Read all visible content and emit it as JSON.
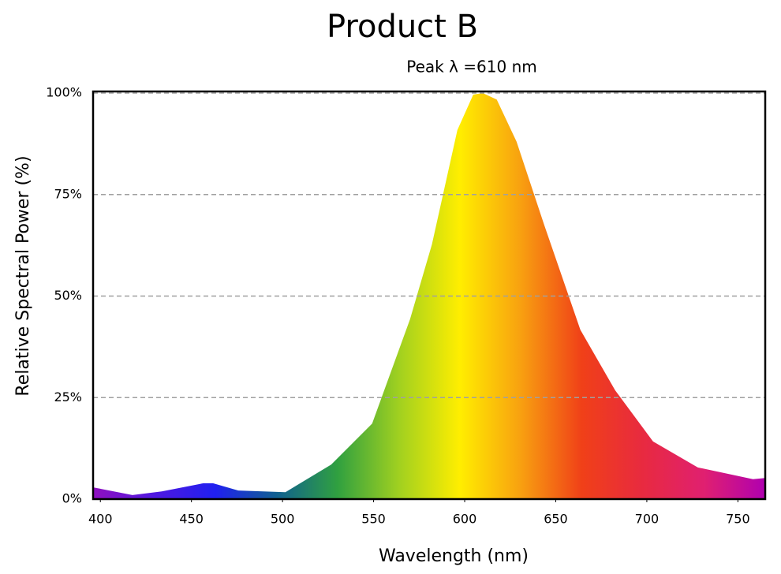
{
  "chart_data": {
    "type": "area",
    "title": "Product B",
    "subtitle": "Peak λ =610 nm",
    "x_label": "Wavelength (nm)",
    "y_label": "Relative Spectral Power (%)",
    "x": [
      396,
      417.6,
      433.7,
      456.6,
      461.8,
      475.7,
      501.6,
      526.7,
      549.2,
      570,
      582,
      596,
      604.7,
      609.9,
      617.6,
      628.5,
      643.6,
      663.5,
      682.6,
      703.4,
      728,
      758.3,
      765
    ],
    "values": [
      2.9,
      1.0,
      1.9,
      3.9,
      3.9,
      2.1,
      1.7,
      8.5,
      18.6,
      44.3,
      62.7,
      90.9,
      99.6,
      100,
      98.4,
      88,
      67.6,
      41.7,
      26.8,
      14.2,
      7.8,
      4.9,
      5.2
    ],
    "colors": [
      "#9010c0",
      "#5018e0",
      "#2020f0",
      "#106090",
      "#30a040",
      "#a0d020",
      "#ffee00",
      "#f8a010",
      "#f04018",
      "#e82a40",
      "#e02070",
      "#b000b0"
    ],
    "xlim": [
      396,
      765
    ],
    "xticks": [
      400,
      450,
      500,
      550,
      600,
      650,
      700,
      750
    ],
    "ylim": [
      0,
      100
    ],
    "yticks": [
      {
        "value": 0,
        "label": "0%"
      },
      {
        "value": 25,
        "label": "25%"
      },
      {
        "value": 50,
        "label": "50%"
      },
      {
        "value": 75,
        "label": "75%"
      },
      {
        "value": 100,
        "label": "100%"
      }
    ],
    "grid": true
  }
}
